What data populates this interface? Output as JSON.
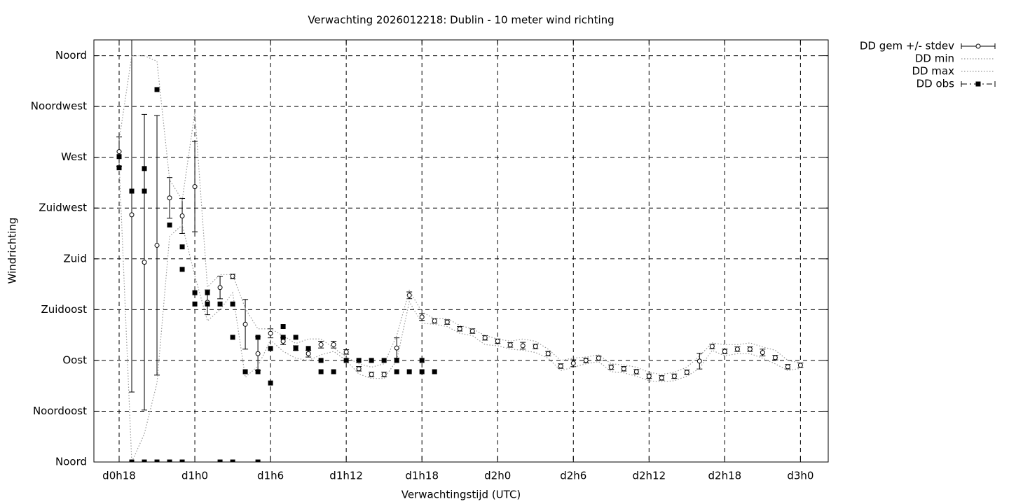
{
  "chart_data": {
    "type": "line",
    "title": "Verwachting 2026012218: Dublin - 10 meter wind richting",
    "xlabel": "Verwachtingstijd (UTC)",
    "ylabel": "Windrichting",
    "x": [
      18,
      19,
      20,
      21,
      22,
      23,
      24,
      25,
      26,
      27,
      28,
      29,
      30,
      31,
      32,
      33,
      34,
      35,
      36,
      37,
      38,
      39,
      40,
      41,
      42,
      43,
      44,
      45,
      46,
      47,
      48,
      49,
      50,
      51,
      52,
      53,
      54,
      55,
      56,
      57,
      58,
      59,
      60,
      61,
      62,
      63,
      64,
      65,
      66,
      67,
      68,
      69,
      70,
      71,
      72
    ],
    "series": [
      {
        "name": "DD gem +/- stdev",
        "color": "#000000",
        "style": "errorbars",
        "values": [
          275,
          219,
          177,
          192,
          234,
          218,
          244,
          141.5,
          154.6,
          164.5,
          122,
          96,
          114,
          107,
          101,
          96,
          104,
          104,
          97.5,
          82.6,
          77.6,
          77.6,
          101,
          147.7,
          128.5,
          125,
          124,
          118,
          116,
          110,
          107,
          103.7,
          103,
          102.4,
          96,
          85,
          87.5,
          90,
          92,
          84,
          82.6,
          80,
          76,
          74.5,
          76,
          79.5,
          89.4,
          102.4,
          98,
          100,
          100,
          97,
          92.5,
          84.4,
          85.7
        ],
        "errors": [
          13,
          157,
          131,
          115,
          18,
          15.5,
          40,
          11,
          10,
          2,
          22,
          15,
          4,
          3,
          2,
          3,
          3,
          3,
          2,
          2,
          2,
          2,
          9,
          3,
          3,
          2,
          2,
          2,
          2,
          2,
          2,
          2,
          3,
          2,
          2,
          2,
          3,
          2,
          2,
          2,
          2,
          2,
          2,
          2,
          2,
          2,
          7,
          2,
          2,
          2,
          2,
          3,
          2,
          2,
          2
        ]
      },
      {
        "name": "DD min",
        "color": "#999999",
        "style": "dotted",
        "values": [
          265,
          0,
          25,
          70,
          200,
          210,
          165,
          125,
          135,
          150,
          75,
          85,
          108,
          98,
          92,
          90,
          95,
          98,
          90,
          78,
          74,
          74,
          90,
          142,
          123,
          122,
          120,
          114,
          112,
          104,
          103,
          100,
          99,
          97,
          92,
          81,
          84,
          87,
          89,
          80,
          79,
          76,
          72,
          71,
          72,
          76,
          83,
          99,
          94,
          96,
          96,
          92,
          87,
          81,
          83
        ]
      },
      {
        "name": "DD max",
        "color": "#999999",
        "style": "dotted",
        "values": [
          285,
          360,
          360,
          355,
          250,
          232,
          310,
          155,
          166,
          166,
          136,
          118,
          118,
          112,
          105,
          109,
          109,
          101,
          93,
          87,
          84,
          87,
          112,
          152,
          133,
          127,
          127,
          121,
          118,
          112,
          109,
          107,
          109,
          107,
          100,
          90,
          92,
          93,
          95,
          87,
          86,
          84,
          79.5,
          77.6,
          79.5,
          84,
          94,
          105.5,
          104,
          104,
          105.5,
          102,
          99,
          90,
          88
        ]
      },
      {
        "name": "DD obs",
        "color": "#000000",
        "style": "points",
        "x": [
          18,
          18,
          19,
          19,
          20,
          20,
          20,
          21,
          21,
          22,
          22,
          23,
          23,
          23,
          24,
          24,
          25,
          25,
          26,
          26,
          27,
          27,
          27,
          28,
          29,
          29,
          29,
          30,
          30,
          31,
          31,
          32,
          32,
          33,
          34,
          34,
          35,
          36,
          37,
          38,
          39,
          40,
          40,
          41,
          42,
          42,
          43
        ],
        "values": [
          270.6,
          260.7,
          240,
          0,
          260,
          240,
          0,
          330,
          0,
          210,
          0,
          190.6,
          170.7,
          0,
          150,
          140,
          150,
          140,
          140,
          0,
          140,
          110.5,
          0,
          80,
          110.5,
          80,
          0,
          100.6,
          70,
          120,
          110.5,
          110.5,
          100.6,
          100.6,
          90,
          80,
          80,
          90,
          90,
          90,
          90,
          90,
          80,
          80,
          90,
          80,
          80
        ]
      }
    ],
    "xlim": [
      16,
      74.2
    ],
    "xticks": [
      {
        "value": 18,
        "label": "d0h18"
      },
      {
        "value": 24,
        "label": "d1h0"
      },
      {
        "value": 30,
        "label": "d1h6"
      },
      {
        "value": 36,
        "label": "d1h12"
      },
      {
        "value": 42,
        "label": "d1h18"
      },
      {
        "value": 48,
        "label": "d2h0"
      },
      {
        "value": 54,
        "label": "d2h6"
      },
      {
        "value": 60,
        "label": "d2h12"
      },
      {
        "value": 66,
        "label": "d2h18"
      },
      {
        "value": 72,
        "label": "d3h0"
      }
    ],
    "ylim": [
      0,
      374
    ],
    "yticks": [
      {
        "value": 0,
        "label": "Noord"
      },
      {
        "value": 45,
        "label": "Noordoost"
      },
      {
        "value": 90,
        "label": "Oost"
      },
      {
        "value": 135,
        "label": "Zuidoost"
      },
      {
        "value": 180,
        "label": "Zuid"
      },
      {
        "value": 225,
        "label": "Zuidwest"
      },
      {
        "value": 270,
        "label": "West"
      },
      {
        "value": 315,
        "label": "Noordwest"
      },
      {
        "value": 360,
        "label": "Noord"
      }
    ],
    "grid": true,
    "legend": "outside-top-right"
  }
}
